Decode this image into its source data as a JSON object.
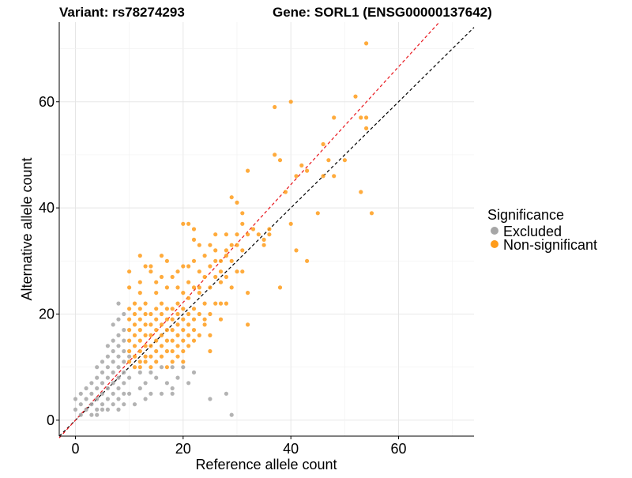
{
  "header": {
    "variant_title": "Variant: rs78274293",
    "gene_title": "Gene: SORL1 (ENSG00000137642)"
  },
  "chart_data": {
    "type": "scatter",
    "xlabel": "Reference allele count",
    "ylabel": "Alternative allele count",
    "xlim": [
      -3,
      74
    ],
    "ylim": [
      -3,
      75
    ],
    "x_ticks": [
      "0",
      "20",
      "40",
      "60"
    ],
    "y_ticks": [
      "0",
      "20",
      "40",
      "60"
    ],
    "grid": true,
    "legend": {
      "title": "Significance",
      "placement": "right",
      "entries": [
        {
          "label": "Excluded",
          "color": "#a6a6a6"
        },
        {
          "label": "Non-significant",
          "color": "#ff9c1a"
        }
      ]
    },
    "reference_lines": [
      {
        "name": "y = x",
        "color": "#000000",
        "slope": 1.0,
        "intercept": 0,
        "style": "dashed"
      },
      {
        "name": "fit",
        "color": "#e8141b",
        "slope": 1.11,
        "intercept": 0,
        "style": "dashed"
      }
    ],
    "series": [
      {
        "name": "Excluded",
        "color": "#a6a6a6",
        "points": [
          [
            0,
            2
          ],
          [
            0,
            4
          ],
          [
            1,
            1
          ],
          [
            1,
            3
          ],
          [
            1,
            5
          ],
          [
            2,
            2
          ],
          [
            2,
            4
          ],
          [
            2,
            6
          ],
          [
            3,
            1
          ],
          [
            3,
            3
          ],
          [
            3,
            5
          ],
          [
            3,
            7
          ],
          [
            4,
            1
          ],
          [
            4,
            2
          ],
          [
            4,
            4
          ],
          [
            4,
            6
          ],
          [
            4,
            8
          ],
          [
            4,
            10
          ],
          [
            5,
            2
          ],
          [
            5,
            3
          ],
          [
            5,
            5
          ],
          [
            5,
            7
          ],
          [
            5,
            9
          ],
          [
            5,
            11
          ],
          [
            6,
            2
          ],
          [
            6,
            4
          ],
          [
            6,
            6
          ],
          [
            6,
            8
          ],
          [
            6,
            10
          ],
          [
            6,
            12
          ],
          [
            6,
            14
          ],
          [
            7,
            3
          ],
          [
            7,
            5
          ],
          [
            7,
            7
          ],
          [
            7,
            9
          ],
          [
            7,
            11
          ],
          [
            7,
            13
          ],
          [
            7,
            15
          ],
          [
            7,
            18
          ],
          [
            8,
            2
          ],
          [
            8,
            4
          ],
          [
            8,
            6
          ],
          [
            8,
            8
          ],
          [
            8,
            10
          ],
          [
            8,
            12
          ],
          [
            8,
            14
          ],
          [
            8,
            16
          ],
          [
            8,
            19
          ],
          [
            8,
            22
          ],
          [
            9,
            3
          ],
          [
            9,
            5
          ],
          [
            9,
            7
          ],
          [
            9,
            9
          ],
          [
            9,
            11
          ],
          [
            9,
            13
          ],
          [
            9,
            15
          ],
          [
            9,
            17
          ],
          [
            9,
            20
          ],
          [
            10,
            5
          ],
          [
            10,
            8
          ],
          [
            10,
            12
          ],
          [
            11,
            3
          ],
          [
            12,
            6
          ],
          [
            13,
            4
          ],
          [
            13,
            7
          ],
          [
            14,
            5
          ],
          [
            14,
            9
          ],
          [
            15,
            8
          ],
          [
            16,
            5
          ],
          [
            17,
            7
          ],
          [
            18,
            6
          ],
          [
            18,
            10
          ],
          [
            19,
            8
          ],
          [
            20,
            10
          ],
          [
            21,
            7
          ],
          [
            22,
            9
          ],
          [
            16,
            10
          ],
          [
            12,
            9
          ],
          [
            18,
            5
          ],
          [
            25,
            4
          ],
          [
            28,
            5
          ],
          [
            29,
            1
          ]
        ]
      },
      {
        "name": "Non-significant",
        "color": "#ff9c1a",
        "points": [
          [
            10,
            11
          ],
          [
            10,
            13
          ],
          [
            10,
            15
          ],
          [
            10,
            17
          ],
          [
            10,
            19
          ],
          [
            10,
            21
          ],
          [
            10,
            25
          ],
          [
            10,
            28
          ],
          [
            11,
            10
          ],
          [
            11,
            12
          ],
          [
            11,
            14
          ],
          [
            11,
            16
          ],
          [
            11,
            18
          ],
          [
            11,
            20
          ],
          [
            11,
            22
          ],
          [
            12,
            10
          ],
          [
            12,
            11
          ],
          [
            12,
            13
          ],
          [
            12,
            15
          ],
          [
            12,
            17
          ],
          [
            12,
            19
          ],
          [
            12,
            21
          ],
          [
            12,
            24
          ],
          [
            12,
            26
          ],
          [
            13,
            11
          ],
          [
            13,
            12
          ],
          [
            13,
            14
          ],
          [
            13,
            16
          ],
          [
            13,
            18
          ],
          [
            13,
            20
          ],
          [
            13,
            22
          ],
          [
            13,
            29
          ],
          [
            14,
            10
          ],
          [
            14,
            12
          ],
          [
            14,
            14
          ],
          [
            14,
            16
          ],
          [
            14,
            18
          ],
          [
            14,
            20
          ],
          [
            14,
            28
          ],
          [
            15,
            11
          ],
          [
            15,
            13
          ],
          [
            15,
            15
          ],
          [
            15,
            17
          ],
          [
            15,
            19
          ],
          [
            15,
            21
          ],
          [
            15,
            24
          ],
          [
            15,
            26
          ],
          [
            16,
            12
          ],
          [
            16,
            14
          ],
          [
            16,
            16
          ],
          [
            16,
            18
          ],
          [
            16,
            20
          ],
          [
            16,
            22
          ],
          [
            16,
            31
          ],
          [
            17,
            10
          ],
          [
            17,
            13
          ],
          [
            17,
            15
          ],
          [
            17,
            17
          ],
          [
            17,
            19
          ],
          [
            17,
            21
          ],
          [
            17,
            25
          ],
          [
            17,
            30
          ],
          [
            18,
            11
          ],
          [
            18,
            13
          ],
          [
            18,
            15
          ],
          [
            18,
            17
          ],
          [
            18,
            19
          ],
          [
            18,
            21
          ],
          [
            18,
            27
          ],
          [
            19,
            12
          ],
          [
            19,
            14
          ],
          [
            19,
            16
          ],
          [
            19,
            18
          ],
          [
            19,
            20
          ],
          [
            19,
            22
          ],
          [
            19,
            25
          ],
          [
            19,
            28
          ],
          [
            20,
            11
          ],
          [
            20,
            13
          ],
          [
            20,
            15
          ],
          [
            20,
            17
          ],
          [
            20,
            19
          ],
          [
            20,
            21
          ],
          [
            20,
            24
          ],
          [
            20,
            29
          ],
          [
            21,
            14
          ],
          [
            21,
            16
          ],
          [
            21,
            18
          ],
          [
            21,
            20
          ],
          [
            21,
            23
          ],
          [
            21,
            26
          ],
          [
            21,
            29
          ],
          [
            22,
            15
          ],
          [
            22,
            17
          ],
          [
            22,
            19
          ],
          [
            22,
            21
          ],
          [
            22,
            25
          ],
          [
            22,
            30
          ],
          [
            22,
            34
          ],
          [
            23,
            16
          ],
          [
            23,
            20
          ],
          [
            23,
            24
          ],
          [
            23,
            28
          ],
          [
            23,
            33
          ],
          [
            24,
            18
          ],
          [
            24,
            22
          ],
          [
            24,
            27
          ],
          [
            24,
            31
          ],
          [
            25,
            13
          ],
          [
            25,
            16
          ],
          [
            25,
            20
          ],
          [
            25,
            25
          ],
          [
            25,
            29
          ],
          [
            26,
            22
          ],
          [
            26,
            27
          ],
          [
            26,
            32
          ],
          [
            26,
            35
          ],
          [
            27,
            19
          ],
          [
            27,
            26
          ],
          [
            27,
            30
          ],
          [
            28,
            22
          ],
          [
            28,
            27
          ],
          [
            28,
            32
          ],
          [
            28,
            35
          ],
          [
            29,
            25
          ],
          [
            29,
            30
          ],
          [
            29,
            33
          ],
          [
            30,
            28
          ],
          [
            30,
            33
          ],
          [
            30,
            35
          ],
          [
            31,
            28
          ],
          [
            31,
            32
          ],
          [
            31,
            37
          ],
          [
            32,
            24
          ],
          [
            32,
            18
          ],
          [
            32,
            47
          ],
          [
            34,
            35
          ],
          [
            35,
            33
          ],
          [
            36,
            35
          ],
          [
            36,
            36
          ],
          [
            37,
            50
          ],
          [
            37,
            59
          ],
          [
            38,
            49
          ],
          [
            38,
            25
          ],
          [
            39,
            43
          ],
          [
            40,
            60
          ],
          [
            40,
            37
          ],
          [
            41,
            46
          ],
          [
            41,
            32
          ],
          [
            42,
            48
          ],
          [
            43,
            30
          ],
          [
            43,
            47
          ],
          [
            45,
            39
          ],
          [
            46,
            52
          ],
          [
            46,
            46
          ],
          [
            47,
            49
          ],
          [
            48,
            57
          ],
          [
            48,
            46
          ],
          [
            50,
            49
          ],
          [
            52,
            61
          ],
          [
            53,
            43
          ],
          [
            53,
            57
          ],
          [
            54,
            57
          ],
          [
            54,
            55
          ],
          [
            54,
            71
          ],
          [
            55,
            39
          ],
          [
            27,
            28
          ],
          [
            28,
            31
          ],
          [
            30,
            41
          ],
          [
            29,
            42
          ],
          [
            31,
            39
          ],
          [
            32,
            35
          ],
          [
            33,
            36
          ],
          [
            20,
            37
          ],
          [
            21,
            37
          ],
          [
            22,
            36
          ],
          [
            25,
            33
          ],
          [
            26,
            30
          ],
          [
            27,
            22
          ],
          [
            24,
            19
          ],
          [
            23,
            25
          ],
          [
            35,
            34
          ],
          [
            12,
            31
          ],
          [
            14,
            29
          ],
          [
            16,
            27
          ]
        ]
      }
    ]
  }
}
